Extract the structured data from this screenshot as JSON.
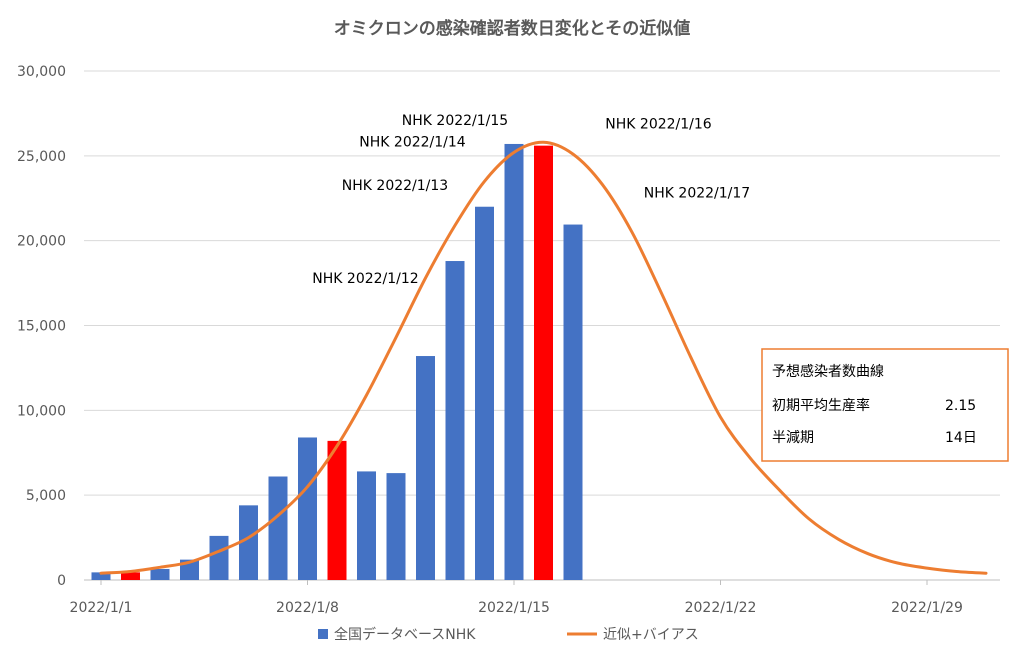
{
  "chart_data": {
    "type": "bar+line",
    "title": "オミクロンの感染確認者数日変化とその近似値",
    "xlabel": "",
    "ylabel": "",
    "ylim": [
      0,
      30000
    ],
    "y_ticks": [
      "0",
      "5,000",
      "10,000",
      "15,000",
      "20,000",
      "25,000",
      "30,000"
    ],
    "x_tick_labels": [
      "2022/1/1",
      "2022/1/8",
      "2022/1/15",
      "2022/1/22",
      "2022/1/29"
    ],
    "gridlines": true,
    "colors": {
      "bar": "#4472c4",
      "bar_highlight": "#ff0000",
      "line": "#ed7d31",
      "grid": "#d9d9d9",
      "axis": "#bfbfbf"
    },
    "bars": {
      "name": "全国データベースNHK",
      "x": [
        "2022/1/1",
        "2022/1/2",
        "2022/1/3",
        "2022/1/4",
        "2022/1/5",
        "2022/1/6",
        "2022/1/7",
        "2022/1/8",
        "2022/1/9",
        "2022/1/10",
        "2022/1/11",
        "2022/1/12",
        "2022/1/13",
        "2022/1/14",
        "2022/1/15",
        "2022/1/16",
        "2022/1/17"
      ],
      "values": [
        450,
        450,
        650,
        1200,
        2600,
        4400,
        6100,
        8400,
        8200,
        6400,
        6300,
        13200,
        18800,
        22000,
        25700,
        25600,
        20950
      ],
      "highlight": [
        false,
        true,
        false,
        false,
        false,
        false,
        false,
        false,
        true,
        false,
        false,
        false,
        false,
        false,
        false,
        true,
        false
      ]
    },
    "line": {
      "name": "近似+バイアス",
      "x": [
        "2022/1/1",
        "2022/1/2",
        "2022/1/3",
        "2022/1/4",
        "2022/1/5",
        "2022/1/6",
        "2022/1/7",
        "2022/1/8",
        "2022/1/9",
        "2022/1/10",
        "2022/1/11",
        "2022/1/12",
        "2022/1/13",
        "2022/1/14",
        "2022/1/15",
        "2022/1/16",
        "2022/1/17",
        "2022/1/18",
        "2022/1/19",
        "2022/1/20",
        "2022/1/21",
        "2022/1/22",
        "2022/1/23",
        "2022/1/24",
        "2022/1/25",
        "2022/1/26",
        "2022/1/27",
        "2022/1/28",
        "2022/1/29",
        "2022/1/30",
        "2022/1/31"
      ],
      "values": [
        400,
        500,
        750,
        1050,
        1700,
        2500,
        3800,
        5500,
        7900,
        10900,
        14300,
        17800,
        20900,
        23500,
        25200,
        25800,
        25100,
        23300,
        20500,
        16900,
        13100,
        9600,
        7200,
        5300,
        3600,
        2400,
        1550,
        1000,
        700,
        500,
        400
      ]
    },
    "annotations": [
      {
        "text": "NHK 2022/1/12",
        "day": 12,
        "y": 13200
      },
      {
        "text": "NHK 2022/1/13",
        "day": 13,
        "y": 18800
      },
      {
        "text": "NHK 2022/1/14",
        "day": 14,
        "y": 22000
      },
      {
        "text": "NHK 2022/1/15",
        "day": 15,
        "y": 25700
      },
      {
        "text": "NHK  2022/1/16",
        "day": 16,
        "y": 25600
      },
      {
        "text": "NHK 2022/1/17",
        "day": 17,
        "y": 20950
      }
    ],
    "legend": {
      "placement": "bottom-center",
      "items": [
        "全国データベースNHK",
        "近似+バイアス"
      ]
    },
    "note_box": {
      "title": "予想感染者数曲線",
      "rows": [
        {
          "label": "初期平均生産率",
          "value": "2.15"
        },
        {
          "label": "半減期",
          "value": "14日"
        }
      ]
    }
  }
}
